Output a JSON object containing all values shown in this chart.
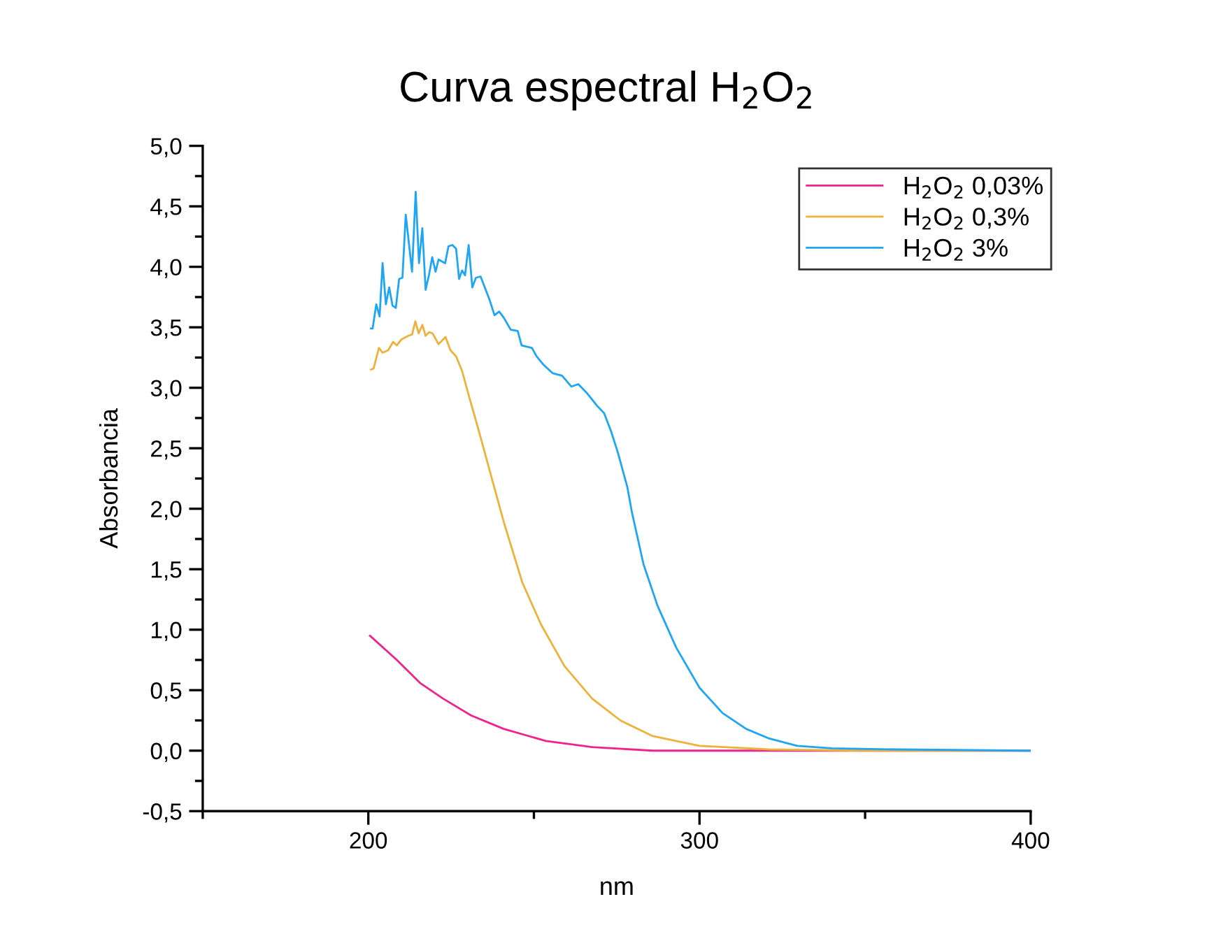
{
  "chart_data": {
    "type": "line",
    "title": "Curva espectral H$_{2}$O$_{2}$",
    "xlabel": "nm",
    "ylabel": "Absorbancia",
    "xlim": [
      150,
      400
    ],
    "ylim": [
      -0.5,
      5.0
    ],
    "xticks": [
      {
        "value": 150,
        "label": null
      },
      200,
      {
        "value": 250,
        "label": null
      },
      300,
      {
        "value": 350,
        "label": null
      },
      400
    ],
    "yticks": [
      {
        "value": -0.5,
        "label": "-0,5"
      },
      {
        "value": -0.25,
        "label": null
      },
      {
        "value": 0,
        "label": "0,0"
      },
      {
        "value": 0.25,
        "label": null
      },
      {
        "value": 0.5,
        "label": "0,5"
      },
      {
        "value": 0.75,
        "label": null
      },
      {
        "value": 1.0,
        "label": "1,0"
      },
      {
        "value": 1.25,
        "label": null
      },
      {
        "value": 1.5,
        "label": "1,5"
      },
      {
        "value": 1.75,
        "label": null
      },
      {
        "value": 2.0,
        "label": "2,0"
      },
      {
        "value": 2.25,
        "label": null
      },
      {
        "value": 2.5,
        "label": "2,5"
      },
      {
        "value": 2.75,
        "label": null
      },
      {
        "value": 3.0,
        "label": "3,0"
      },
      {
        "value": 3.25,
        "label": null
      },
      {
        "value": 3.5,
        "label": "3,5"
      },
      {
        "value": 3.75,
        "label": null
      },
      {
        "value": 4.0,
        "label": "4,0"
      },
      {
        "value": 4.25,
        "label": null
      },
      {
        "value": 4.5,
        "label": "4,5"
      },
      {
        "value": 4.75,
        "label": null
      },
      {
        "value": 5.0,
        "label": "5,0"
      }
    ],
    "grid": false,
    "legend": "top right",
    "marker": "none",
    "line_style": "solid",
    "series": [
      {
        "name": "H$_{2}$O$_{2}$ 0,03%",
        "color": "#f0228c",
        "x": [
          200.5,
          208.6,
          215.6,
          222.6,
          231.1,
          240.9,
          253.6,
          267.6,
          285.9,
          300,
          320,
          350,
          400
        ],
        "values": [
          0.95,
          0.75,
          0.56,
          0.43,
          0.29,
          0.18,
          0.08,
          0.03,
          0.0,
          0.0,
          0.0,
          0.0,
          0.0
        ]
      },
      {
        "name": "H$_{2}$O$_{2}$ 0,3%",
        "color": "#edb23a",
        "x": [
          200.8,
          201.6,
          203.2,
          204.3,
          206.0,
          207.5,
          208.6,
          210.0,
          212.1,
          213.2,
          214.2,
          215.2,
          216.3,
          217.3,
          218.4,
          219.4,
          221.2,
          223.3,
          224.8,
          226.5,
          228.3,
          230.4,
          233.2,
          236.7,
          240.9,
          246.5,
          252.2,
          259.2,
          267.6,
          276.1,
          285.9,
          300,
          321.1,
          350,
          400
        ],
        "values": [
          3.15,
          3.16,
          3.33,
          3.29,
          3.31,
          3.38,
          3.35,
          3.4,
          3.43,
          3.44,
          3.55,
          3.45,
          3.52,
          3.43,
          3.46,
          3.45,
          3.36,
          3.42,
          3.31,
          3.26,
          3.14,
          2.93,
          2.66,
          2.31,
          1.89,
          1.39,
          1.04,
          0.7,
          0.43,
          0.25,
          0.12,
          0.04,
          0.01,
          0.0,
          0.0
        ]
      },
      {
        "name": "H$_{2}$O$_{2}$ 3%",
        "color": "#1ea6f5",
        "x": [
          200.8,
          201.3,
          202.4,
          203.4,
          204.3,
          205.3,
          206.3,
          207.3,
          208.3,
          209.3,
          210.3,
          211.3,
          213.2,
          214.3,
          215.3,
          216.3,
          217.3,
          218.3,
          219.3,
          220.3,
          221.2,
          223.2,
          224.2,
          225.4,
          226.5,
          227.4,
          228.3,
          229.2,
          230.3,
          231.4,
          232.5,
          233.9,
          235.3,
          236.7,
          238.1,
          239.5,
          240.9,
          243.0,
          245.1,
          246.3,
          249.4,
          250.8,
          252.9,
          255.7,
          258.5,
          261.3,
          263.4,
          266.2,
          269.1,
          271.2,
          273.3,
          275.4,
          278.2,
          279.6,
          283.1,
          287.3,
          293.0,
          300.0,
          307.0,
          314.1,
          321.1,
          329.5,
          340,
          360,
          400
        ],
        "values": [
          3.49,
          3.49,
          3.69,
          3.59,
          4.03,
          3.69,
          3.83,
          3.68,
          3.66,
          3.9,
          3.91,
          4.43,
          3.96,
          4.62,
          4.03,
          4.32,
          3.81,
          3.93,
          4.08,
          3.96,
          4.06,
          4.03,
          4.17,
          4.18,
          4.15,
          3.9,
          3.97,
          3.93,
          4.18,
          3.83,
          3.91,
          3.92,
          3.82,
          3.72,
          3.6,
          3.63,
          3.58,
          3.48,
          3.47,
          3.35,
          3.33,
          3.26,
          3.19,
          3.12,
          3.1,
          3.01,
          3.03,
          2.95,
          2.85,
          2.79,
          2.64,
          2.46,
          2.18,
          1.97,
          1.54,
          1.2,
          0.85,
          0.52,
          0.31,
          0.18,
          0.1,
          0.04,
          0.02,
          0.01,
          0.0
        ]
      }
    ]
  }
}
